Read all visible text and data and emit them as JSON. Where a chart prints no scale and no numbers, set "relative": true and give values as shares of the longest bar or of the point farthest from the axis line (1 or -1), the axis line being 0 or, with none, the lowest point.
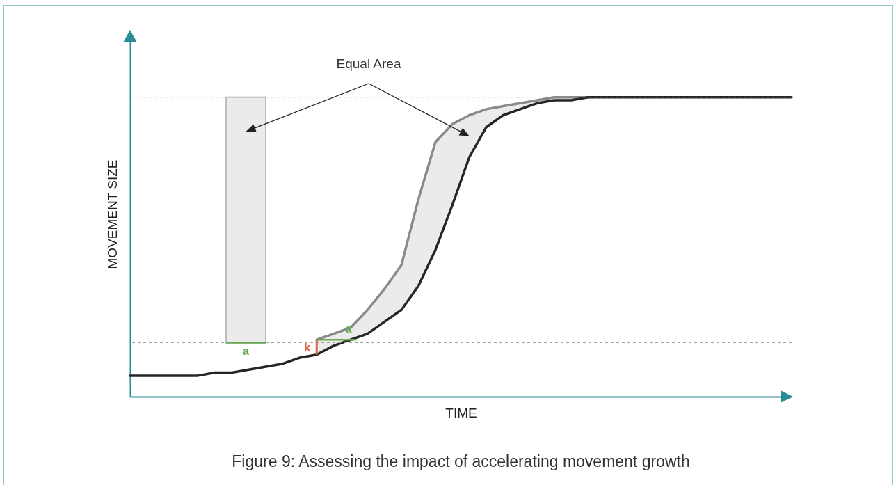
{
  "chart_data": {
    "type": "line",
    "title": "Figure 9: Assessing the impact of accelerating movement growth",
    "xlabel": "TIME",
    "ylabel": "MOVEMENT SIZE",
    "relative": true,
    "tick_labels": false,
    "categories": [
      null,
      null,
      null,
      null,
      null,
      null,
      null,
      null,
      null,
      null,
      null,
      null,
      null,
      null,
      null,
      null,
      null,
      null,
      null,
      null,
      null,
      null,
      null,
      null,
      null,
      null,
      null,
      null,
      null,
      null,
      null,
      null,
      null,
      null,
      null,
      null,
      null,
      null,
      null,
      null
    ],
    "series": [
      {
        "color": "#8a8a8a",
        "values": [
          null,
          null,
          null,
          null,
          null,
          null,
          null,
          null,
          null,
          null,
          null,
          0.19,
          0.21,
          0.23,
          0.29,
          0.36,
          0.44,
          0.66,
          0.85,
          0.91,
          0.94,
          0.96,
          0.97,
          0.98,
          0.99,
          1,
          1,
          1,
          null,
          null,
          null,
          null,
          null,
          null,
          null,
          null,
          null,
          null,
          null,
          null
        ],
        "lower": [
          null,
          null,
          null,
          null,
          null,
          null,
          null,
          null,
          null,
          null,
          null,
          0.14,
          0.17,
          0.19,
          0.21,
          0.25,
          0.29,
          0.37,
          0.49,
          0.64,
          0.8,
          0.9,
          0.94,
          0.96,
          0.98,
          0.99,
          0.99,
          1,
          null,
          null,
          null,
          null,
          null,
          null,
          null,
          null,
          null,
          null,
          null,
          null
        ],
        "upper": [
          null,
          null,
          null,
          null,
          null,
          null,
          null,
          null,
          null,
          null,
          null,
          0.19,
          0.21,
          0.23,
          0.29,
          0.36,
          0.44,
          0.66,
          0.85,
          0.91,
          0.94,
          0.96,
          0.97,
          0.98,
          0.99,
          1,
          1,
          1,
          null,
          null,
          null,
          null,
          null,
          null,
          null,
          null,
          null,
          null,
          null,
          null
        ]
      },
      {
        "color": "#262626",
        "values": [
          0.07,
          0.07,
          0.07,
          0.07,
          0.07,
          0.08,
          0.08,
          0.09,
          0.1,
          0.11,
          0.13,
          0.14,
          0.17,
          0.19,
          0.21,
          0.25,
          0.29,
          0.37,
          0.49,
          0.64,
          0.8,
          0.9,
          0.94,
          0.96,
          0.98,
          0.99,
          0.99,
          1,
          1,
          1,
          1,
          1,
          1,
          1,
          1,
          1,
          1,
          1,
          1,
          1
        ]
      }
    ],
    "ref_lines": [
      {
        "axis": "y",
        "value": 0.18,
        "line_style": "dashed",
        "color": "#a0a0a0"
      },
      {
        "axis": "y",
        "value": 1,
        "line_style": "dashed",
        "color": "#a0a0a0"
      }
    ],
    "annotations": [
      "Equal Area",
      "a",
      "a",
      "k"
    ]
  }
}
